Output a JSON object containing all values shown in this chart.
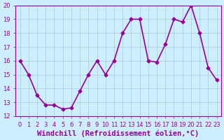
{
  "x": [
    0,
    1,
    2,
    3,
    4,
    5,
    6,
    7,
    8,
    9,
    10,
    11,
    12,
    13,
    14,
    15,
    16,
    17,
    18,
    19,
    20,
    21,
    22,
    23
  ],
  "y": [
    16,
    15,
    13.5,
    12.8,
    12.8,
    12.5,
    12.6,
    13.8,
    15,
    16,
    15,
    16,
    18,
    19,
    19,
    16,
    15.9,
    17.2,
    19,
    18.8,
    20,
    18,
    15.5,
    14.6
  ],
  "line_color": "#990099",
  "marker": "D",
  "marker_size": 2.5,
  "bg_color": "#cceeff",
  "xlabel": "Windchill (Refroidissement éolien,°C)",
  "xlabel_color": "#990099",
  "ylim": [
    12,
    20
  ],
  "xlim_min": -0.5,
  "xlim_max": 23.5,
  "yticks": [
    12,
    13,
    14,
    15,
    16,
    17,
    18,
    19,
    20
  ],
  "xticks": [
    0,
    1,
    2,
    3,
    4,
    5,
    6,
    7,
    8,
    9,
    10,
    11,
    12,
    13,
    14,
    15,
    16,
    17,
    18,
    19,
    20,
    21,
    22,
    23
  ],
  "grid_color": "#aacccc",
  "tick_color": "#990099",
  "tick_fontsize": 6,
  "xlabel_fontsize": 7.5,
  "line_width": 1.2
}
